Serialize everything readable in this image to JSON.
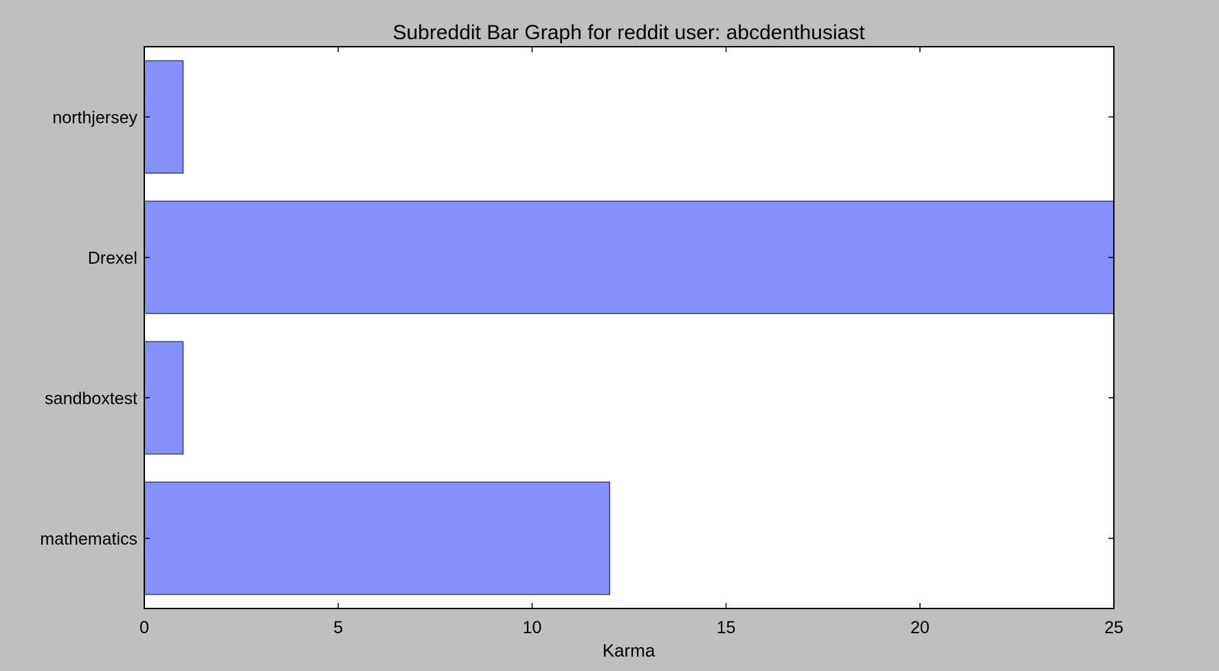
{
  "chart_data": {
    "type": "bar",
    "orientation": "horizontal",
    "title": "Subreddit Bar Graph for reddit user: abcdenthusiast",
    "xlabel": "Karma",
    "ylabel": "",
    "categories": [
      "northjersey",
      "Drexel",
      "sandboxtest",
      "mathematics"
    ],
    "values": [
      1,
      25,
      1,
      12
    ],
    "xlim": [
      0,
      25
    ],
    "xticks": [
      0,
      5,
      10,
      15,
      20,
      25
    ],
    "xtick_labels": [
      "0",
      "5",
      "10",
      "15",
      "20",
      "25"
    ],
    "grid": false,
    "legend": "none"
  },
  "colors": {
    "bar_fill": "#8591fb",
    "bar_edge": "#3c4270",
    "plot_background": "#ffffff",
    "figure_background": "#bfbfbf"
  }
}
